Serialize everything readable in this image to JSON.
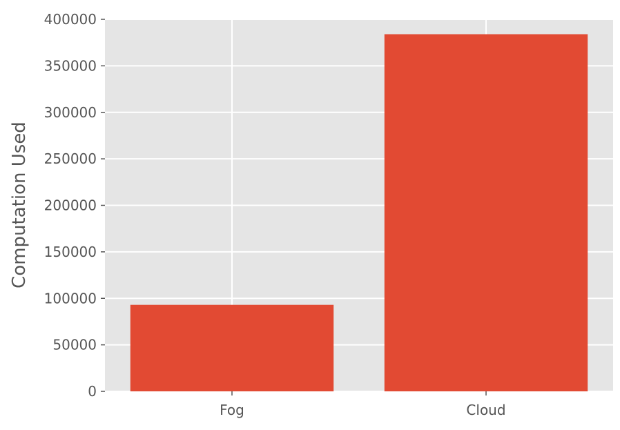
{
  "chart_data": {
    "type": "bar",
    "categories": [
      "Fog",
      "Cloud"
    ],
    "values": [
      93000,
      384000
    ],
    "title": "",
    "xlabel": "",
    "ylabel": "Computation Used",
    "ylim": [
      0,
      400000
    ],
    "yticks": [
      0,
      50000,
      100000,
      150000,
      200000,
      250000,
      300000,
      350000,
      400000
    ],
    "ytick_labels": [
      "0",
      "50000",
      "100000",
      "150000",
      "200000",
      "250000",
      "300000",
      "350000",
      "400000"
    ],
    "grid": true,
    "legend": "none",
    "colors": {
      "bar": "#E24A33",
      "plot_background": "#E5E5E5",
      "grid": "#FFFFFF",
      "text": "#555555"
    }
  }
}
